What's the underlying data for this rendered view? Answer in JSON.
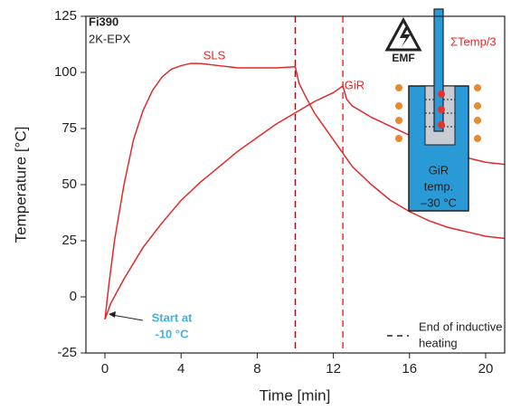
{
  "chart_data": {
    "type": "line",
    "xlabel": "Time [min]",
    "ylabel": "Temperature [°C]",
    "xlim": [
      -1,
      21
    ],
    "ylim": [
      -25,
      125
    ],
    "xticks": [
      0,
      4,
      8,
      12,
      16,
      20
    ],
    "yticks": [
      -25,
      0,
      25,
      50,
      75,
      100,
      125
    ],
    "series": [
      {
        "name": "SLS",
        "color": "#e02a2a",
        "x": [
          0,
          0.2,
          0.5,
          1,
          1.5,
          2,
          2.5,
          3,
          3.5,
          4,
          4.5,
          5,
          6,
          7,
          8,
          9,
          10,
          10.2,
          10.5,
          11,
          12,
          13,
          14,
          15,
          16,
          17,
          18,
          19,
          20,
          21
        ],
        "values": [
          -10,
          5,
          25,
          50,
          70,
          83,
          92,
          98,
          101.5,
          103,
          104,
          104,
          103,
          102,
          102,
          102,
          102.5,
          95,
          90,
          82,
          70,
          58,
          50,
          43,
          38,
          34,
          31,
          29,
          27,
          26
        ]
      },
      {
        "name": "GiR",
        "color": "#e02a2a",
        "x": [
          0,
          0.3,
          1,
          2,
          3,
          4,
          5,
          6,
          7,
          8,
          9,
          10,
          11,
          12,
          12.5,
          12.7,
          13,
          14,
          15,
          16,
          17,
          18,
          19,
          20,
          21
        ],
        "values": [
          -10,
          -3,
          8,
          22,
          33,
          43,
          51,
          58,
          65,
          71,
          77,
          82,
          87,
          91,
          94,
          88,
          85,
          80,
          76,
          72,
          68,
          65,
          62,
          60,
          59
        ]
      }
    ],
    "vlines": [
      {
        "value": 10,
        "color": "#8b1a1a"
      },
      {
        "value": 12.5,
        "color": "#f03030"
      }
    ],
    "legend_label": [
      "End of inductive",
      "heating"
    ],
    "sample_name": "Fi390",
    "sample_type": "2K-EPX",
    "start_note": [
      "Start at",
      "-10 °C"
    ],
    "inset_labels": {
      "emf": "EMF",
      "sensor": "ΣTemp/3",
      "gir": [
        "GiR",
        "temp.",
        "–30 °C"
      ]
    }
  }
}
